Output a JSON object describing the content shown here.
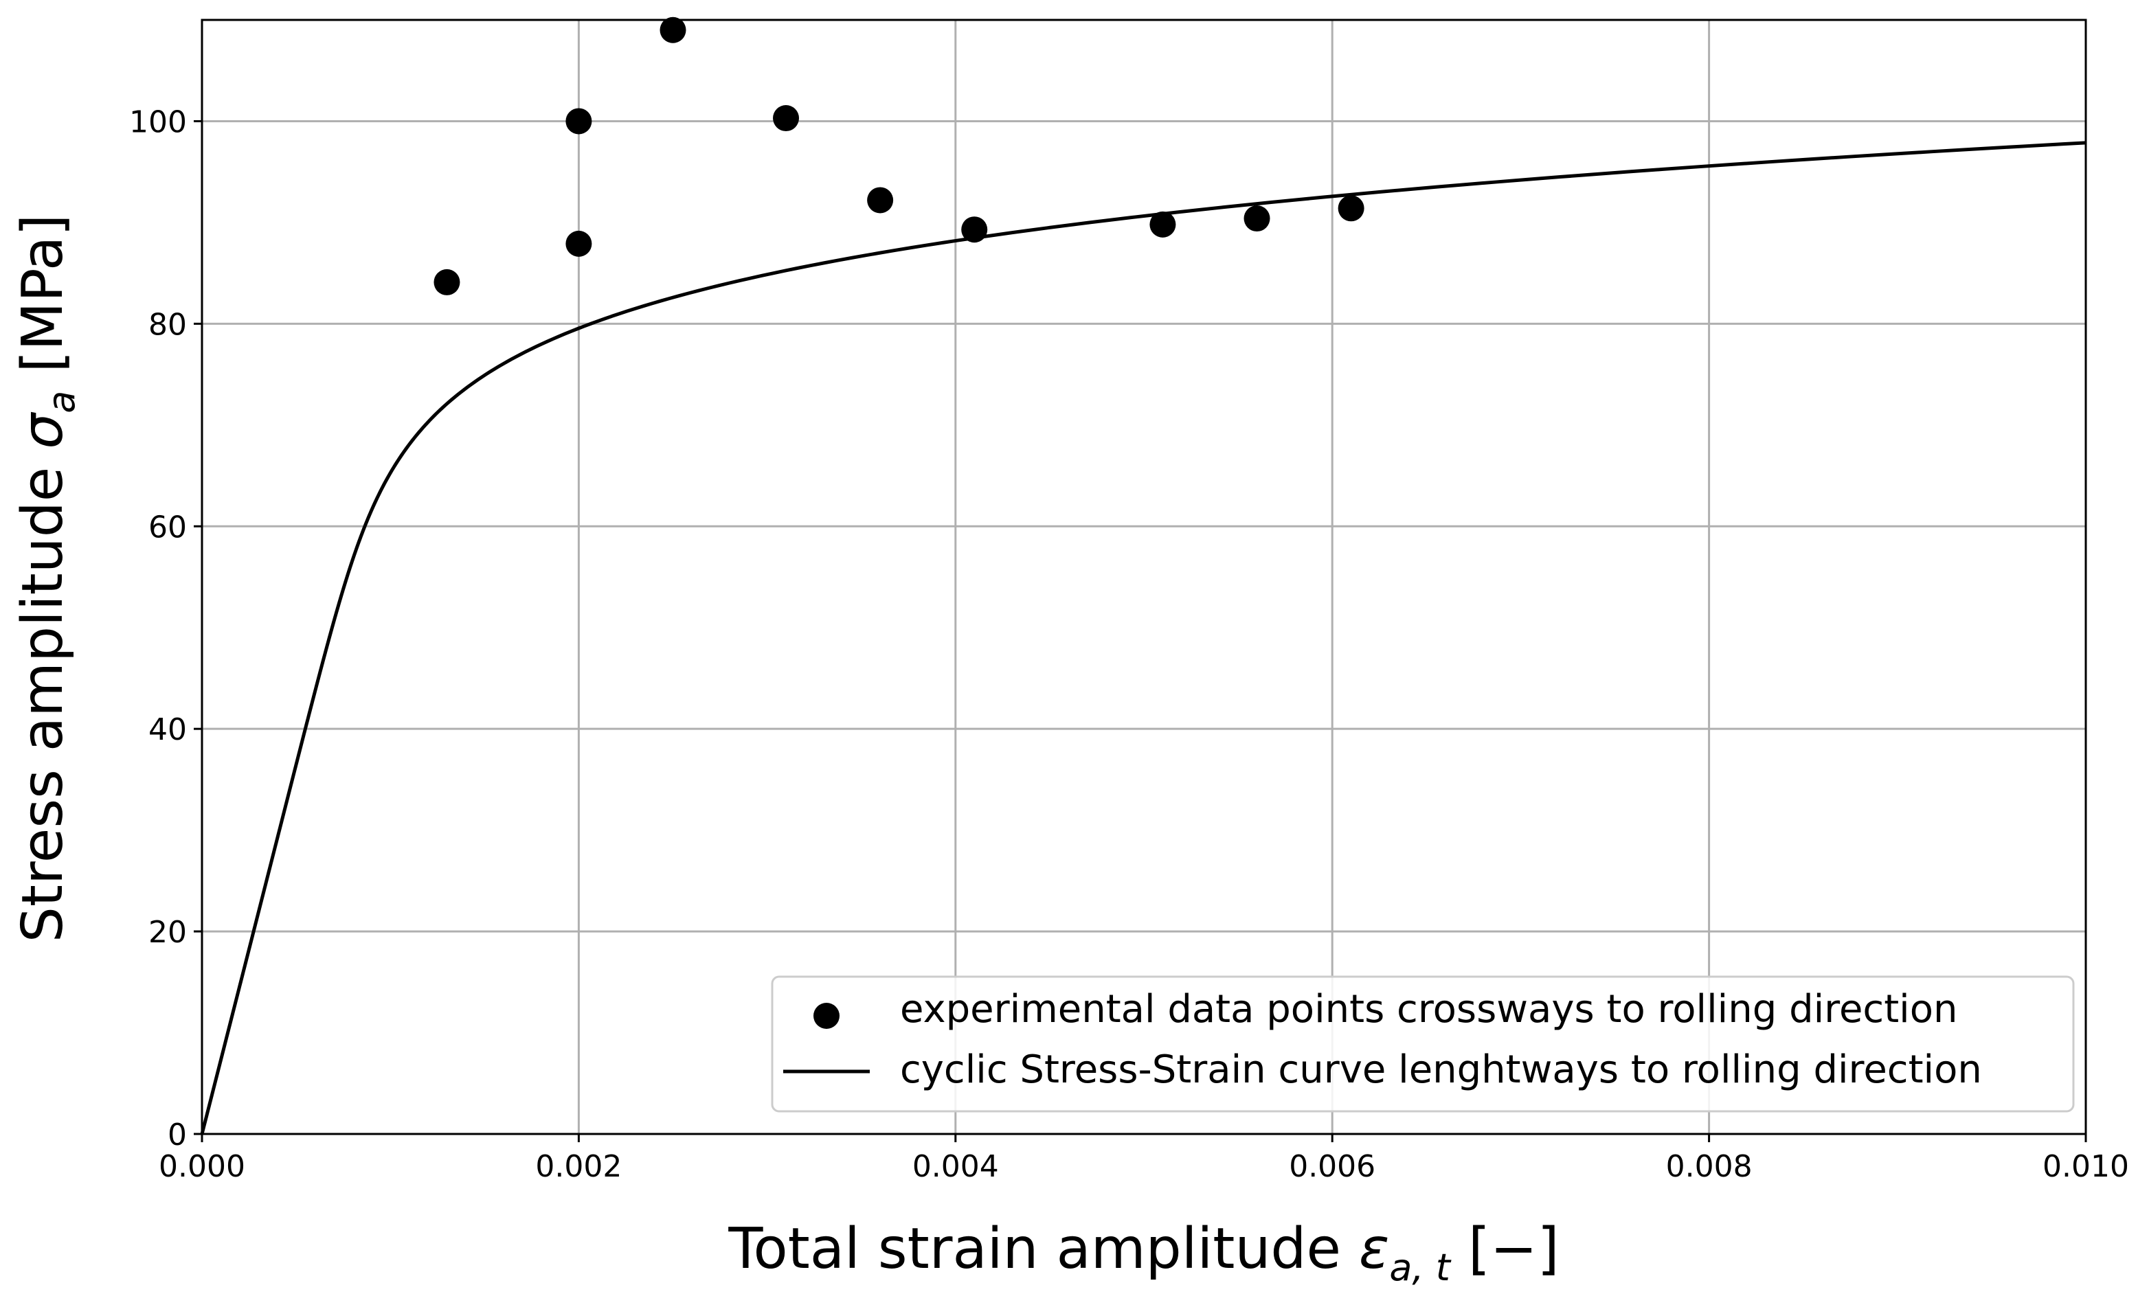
{
  "chart_data": {
    "type": "scatter",
    "title": "",
    "xlabel_text": "Total strain amplitude ",
    "xlabel_symbol": "ε",
    "xlabel_subscript": "a, t",
    "xlabel_unit": " [−]",
    "ylabel_text": "Stress amplitude ",
    "ylabel_symbol": "σ",
    "ylabel_subscript": "a",
    "ylabel_unit": " [MPa]",
    "xlim": [
      0.0,
      0.01
    ],
    "ylim": [
      0,
      110
    ],
    "xticks": [
      0.0,
      0.002,
      0.004,
      0.006,
      0.008,
      0.01
    ],
    "xtick_labels": [
      "0.000",
      "0.002",
      "0.004",
      "0.006",
      "0.008",
      "0.010"
    ],
    "yticks": [
      0,
      20,
      40,
      60,
      80,
      100
    ],
    "ytick_labels": [
      "0",
      "20",
      "40",
      "60",
      "80",
      "100"
    ],
    "grid": true,
    "legend_position": "lower-right",
    "series": [
      {
        "name": "experimental data points crossways to rolling direction",
        "kind": "scatter",
        "color": "#000000",
        "x": [
          0.0013,
          0.002,
          0.002,
          0.0025,
          0.0031,
          0.0036,
          0.0041,
          0.0051,
          0.0056,
          0.0061
        ],
        "y": [
          84.1,
          87.9,
          100.0,
          109.0,
          100.3,
          92.2,
          89.3,
          89.8,
          90.4,
          91.4
        ]
      },
      {
        "name": "cyclic Stress-Strain curve lenghtways to rolling direction",
        "kind": "line",
        "color": "#000000",
        "model": "ramberg-osgood",
        "E_MPa": 73000,
        "K_MPa": 151.5,
        "n": 0.092
      }
    ]
  }
}
